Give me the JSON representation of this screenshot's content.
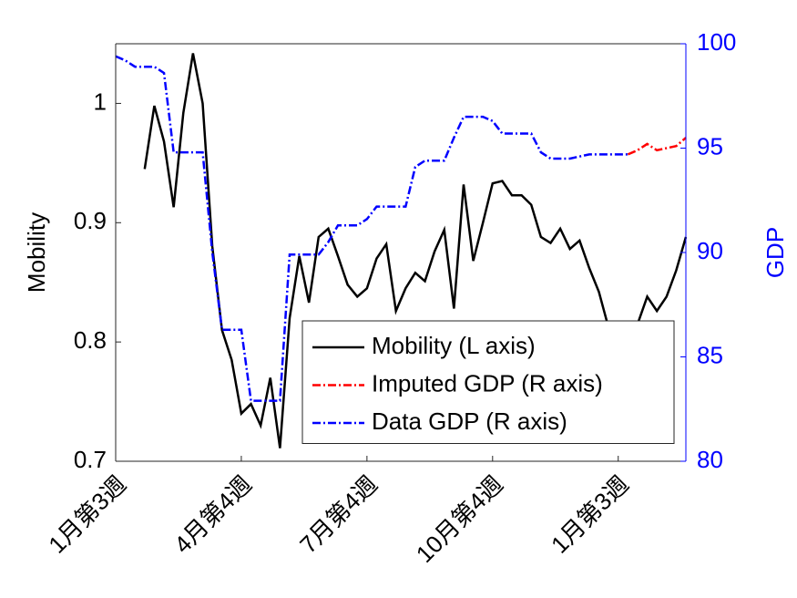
{
  "chart_data": {
    "type": "line",
    "ylabel": "Mobility",
    "y2label": "GDP",
    "xlim": [
      0,
      59
    ],
    "xticks": [
      {
        "value": 0,
        "label": "1月第3週"
      },
      {
        "value": 13,
        "label": "4月第4週"
      },
      {
        "value": 26,
        "label": "7月第4週"
      },
      {
        "value": 39,
        "label": "10月第4週"
      },
      {
        "value": 52,
        "label": "1月第3週"
      }
    ],
    "ylim": [
      0.7,
      1.05
    ],
    "yticks": [
      0.7,
      0.8,
      0.9,
      1
    ],
    "y2lim": [
      80,
      100
    ],
    "y2ticks": [
      80,
      85,
      90,
      95,
      100
    ],
    "y2color": "#0000ff",
    "legend": "lower-right",
    "series": [
      {
        "name": "Mobility (L axis)",
        "color": "#000000",
        "line_style": "solid",
        "axis": "y",
        "x": [
          3,
          4,
          5,
          6,
          7,
          8,
          9,
          10,
          11,
          12,
          13,
          14,
          15,
          16,
          17,
          18,
          19,
          20,
          21,
          22,
          23,
          24,
          25,
          26,
          27,
          28,
          29,
          30,
          31,
          32,
          33,
          34,
          35,
          36,
          37,
          38,
          39,
          40,
          41,
          42,
          43,
          44,
          45,
          46,
          47,
          48,
          49,
          50,
          51,
          52,
          53,
          54,
          55,
          56,
          57,
          58,
          59
        ],
        "values": [
          0.945,
          0.998,
          0.968,
          0.913,
          0.992,
          1.042,
          1.0,
          0.88,
          0.81,
          0.785,
          0.74,
          0.748,
          0.73,
          0.77,
          0.711,
          0.82,
          0.872,
          0.833,
          0.888,
          0.895,
          0.872,
          0.848,
          0.838,
          0.845,
          0.87,
          0.882,
          0.826,
          0.845,
          0.858,
          0.851,
          0.876,
          0.894,
          0.828,
          0.932,
          0.868,
          0.9,
          0.933,
          0.935,
          0.923,
          0.923,
          0.915,
          0.888,
          0.883,
          0.895,
          0.878,
          0.885,
          0.862,
          0.842,
          0.812,
          0.8,
          0.81,
          0.815,
          0.838,
          0.826,
          0.838,
          0.86,
          0.888
        ]
      },
      {
        "name": "Imputed GDP (R axis)",
        "color": "#ff0000",
        "line_style": "dashdot",
        "axis": "y2",
        "x": [
          53,
          54,
          55,
          56,
          57,
          58,
          59
        ],
        "values": [
          94.7,
          94.9,
          95.2,
          94.9,
          95.0,
          95.1,
          95.5
        ]
      },
      {
        "name": "Data GDP (R axis)",
        "color": "#0000ff",
        "line_style": "dashdot",
        "axis": "y2",
        "x": [
          0,
          1,
          2,
          3,
          4,
          5,
          6,
          7,
          8,
          9,
          10,
          11,
          12,
          13,
          14,
          15,
          16,
          17,
          18,
          19,
          20,
          21,
          22,
          23,
          24,
          25,
          26,
          27,
          28,
          29,
          30,
          31,
          32,
          33,
          34,
          35,
          36,
          37,
          38,
          39,
          40,
          41,
          42,
          43,
          44,
          45,
          46,
          47,
          48,
          49,
          50,
          51,
          52,
          53
        ],
        "values": [
          99.4,
          99.2,
          98.9,
          98.9,
          98.9,
          98.6,
          94.8,
          94.8,
          94.8,
          94.8,
          90.0,
          86.3,
          86.3,
          86.3,
          82.9,
          82.9,
          82.9,
          82.9,
          89.9,
          89.9,
          89.9,
          89.9,
          90.5,
          91.3,
          91.3,
          91.3,
          91.6,
          92.2,
          92.2,
          92.2,
          92.2,
          94.1,
          94.4,
          94.4,
          94.4,
          95.5,
          96.5,
          96.5,
          96.5,
          96.3,
          95.7,
          95.7,
          95.7,
          95.7,
          94.8,
          94.5,
          94.5,
          94.5,
          94.6,
          94.7,
          94.7,
          94.7,
          94.7,
          94.7
        ]
      }
    ]
  }
}
